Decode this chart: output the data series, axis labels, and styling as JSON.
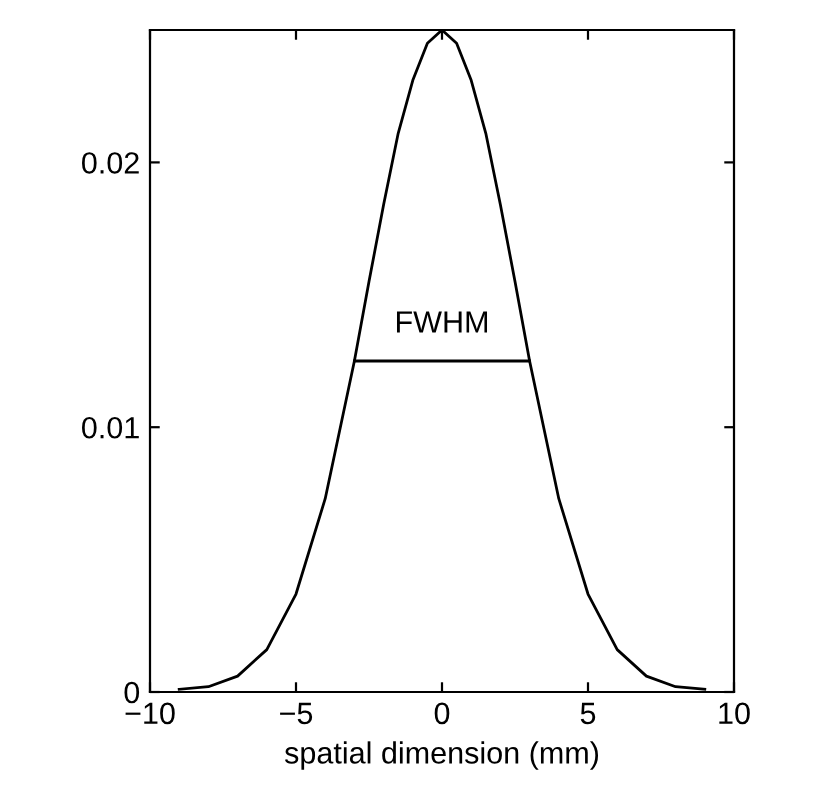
{
  "chart_data": {
    "type": "line",
    "xlabel": "spatial dimension (mm)",
    "xlim": [
      -10,
      10
    ],
    "xticks": [
      {
        "value": -10,
        "label": "−10"
      },
      {
        "value": -5,
        "label": "−5"
      },
      0,
      5,
      10
    ],
    "ylim": [
      0,
      0.025
    ],
    "yticks": [
      0,
      0.01,
      0.02
    ],
    "series": [
      {
        "color": "#000000",
        "x": [
          -9,
          -8,
          -7,
          -6,
          -5,
          -4,
          -3,
          -2.5,
          -2,
          -1.5,
          -1,
          -0.5,
          0,
          0.5,
          1,
          1.5,
          2,
          2.5,
          3,
          4,
          5,
          6,
          7,
          8,
          9
        ],
        "values": [
          0.0001,
          0.0002,
          0.0006,
          0.0016,
          0.0037,
          0.0073,
          0.0125,
          0.0155,
          0.0184,
          0.0211,
          0.0231,
          0.0245,
          0.025,
          0.0245,
          0.0231,
          0.0211,
          0.0184,
          0.0155,
          0.0125,
          0.0073,
          0.0037,
          0.0016,
          0.0006,
          0.0002,
          0.0001
        ]
      },
      {
        "color": "#000000",
        "x": [
          -3,
          3
        ],
        "values": [
          0.0125,
          0.0125
        ]
      }
    ],
    "annotations": [
      {
        "text": "FWHM",
        "x": 0,
        "y": 0.0125
      }
    ],
    "grid": false,
    "legend": false,
    "marker": "none",
    "line_style": "solid"
  }
}
